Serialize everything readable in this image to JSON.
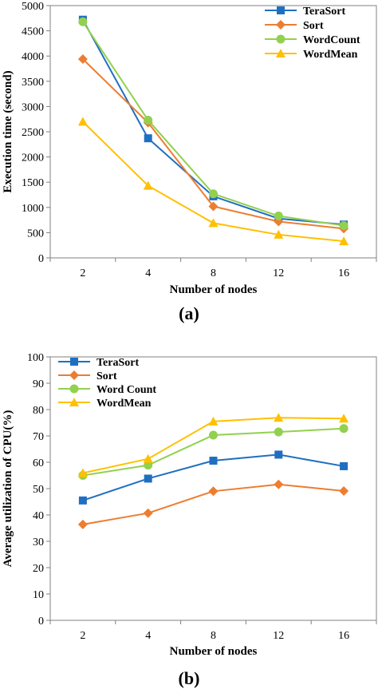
{
  "chart_data": [
    {
      "type": "line",
      "panel_label": "(a)",
      "categories": [
        "2",
        "4",
        "8",
        "12",
        "16"
      ],
      "xlabel": "Number of nodes",
      "ylabel": "Execution time (second)",
      "ylim": [
        0,
        5000
      ],
      "yticks": [
        0,
        500,
        1000,
        1500,
        2000,
        2500,
        3000,
        3500,
        4000,
        4500,
        5000
      ],
      "grid": false,
      "legend_position": "top-right",
      "series": [
        {
          "name": "TeraSort",
          "color": "#1f6fc1",
          "marker": "square",
          "values": [
            4720,
            2370,
            1220,
            780,
            660
          ]
        },
        {
          "name": "Sort",
          "color": "#ed7d31",
          "marker": "diamond",
          "values": [
            3940,
            2680,
            1020,
            720,
            580
          ]
        },
        {
          "name": "WordCount",
          "color": "#92d050",
          "marker": "circle",
          "values": [
            4680,
            2730,
            1270,
            830,
            640
          ]
        },
        {
          "name": "WordMean",
          "color": "#ffc000",
          "marker": "triangle",
          "values": [
            2700,
            1430,
            690,
            460,
            330
          ]
        }
      ]
    },
    {
      "type": "line",
      "panel_label": "(b)",
      "categories": [
        "2",
        "4",
        "8",
        "12",
        "16"
      ],
      "xlabel": "Number of nodes",
      "ylabel": "Average utilization of CPU(%)",
      "ylim": [
        0,
        100
      ],
      "yticks": [
        0,
        10,
        20,
        30,
        40,
        50,
        60,
        70,
        80,
        90,
        100
      ],
      "grid": false,
      "legend_position": "top-left",
      "series": [
        {
          "name": "TeraSort",
          "color": "#1f6fc1",
          "marker": "square",
          "values": [
            45.5,
            53.8,
            60.6,
            62.9,
            58.5
          ]
        },
        {
          "name": "Sort",
          "color": "#ed7d31",
          "marker": "diamond",
          "values": [
            36.4,
            40.7,
            49.0,
            51.6,
            49.1
          ]
        },
        {
          "name": "Word Count",
          "color": "#92d050",
          "marker": "circle",
          "values": [
            55.0,
            58.9,
            70.3,
            71.5,
            72.8
          ]
        },
        {
          "name": "WordMean",
          "color": "#ffc000",
          "marker": "triangle",
          "values": [
            55.9,
            61.3,
            75.5,
            76.9,
            76.6
          ]
        }
      ]
    }
  ]
}
